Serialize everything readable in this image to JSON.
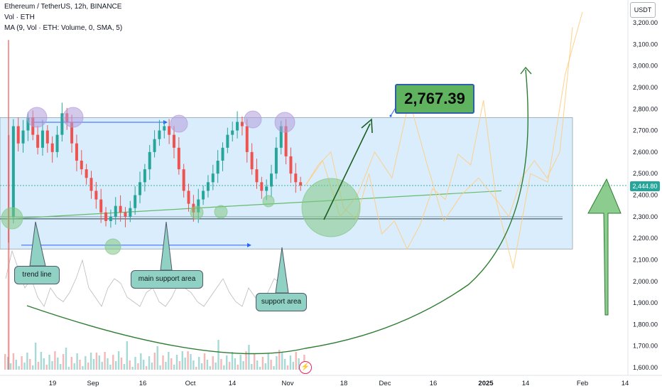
{
  "header": {
    "symbol_line": "Ethereum / TetherUS, 12h, BINANCE",
    "vol_line": "Vol · ETH",
    "ma_line": "MA (9, Vol · ETH: Volume, 0, SMA, 5)"
  },
  "price_axis": {
    "currency": "USDT",
    "labels": [
      "3,200.00",
      "3,100.00",
      "3,000.00",
      "2,900.00",
      "2,800.00",
      "2,700.00",
      "2,600.00",
      "2,500.00",
      "2,400.00",
      "2,300.00",
      "2,200.00",
      "2,100.00",
      "2,000.00",
      "1,900.00",
      "1,800.00",
      "1,700.00",
      "1,600.00"
    ],
    "current_price": "2,444.80"
  },
  "time_axis": {
    "labels": [
      "19",
      "Sep",
      "16",
      "Oct",
      "14",
      "Nov",
      "18",
      "Dec",
      "16",
      "2025",
      "14",
      "Feb",
      "14"
    ]
  },
  "annotations": {
    "target_price": "2,767.39",
    "trend_line": "trend line",
    "main_support": "main support area",
    "support_area": "support area"
  },
  "colors": {
    "up": "#26a69a",
    "down": "#ef5350",
    "zone": "#bbdefb",
    "arrow": "#2e7d32",
    "callout": "#8fd1c3"
  },
  "icons": [
    "lightning-icon"
  ],
  "chart_data": {
    "type": "candlestick",
    "title": "Ethereum / TetherUS, 12h, BINANCE",
    "ylim": [
      1550,
      3250
    ],
    "zone": [
      2150,
      2760
    ],
    "support_level": 2290,
    "close_series": [
      2300,
      2720,
      2640,
      2700,
      2760,
      2680,
      2620,
      2700,
      2640,
      2600,
      2680,
      2780,
      2740,
      2640,
      2560,
      2520,
      2480,
      2420,
      2380,
      2320,
      2280,
      2300,
      2350,
      2320,
      2300,
      2340,
      2400,
      2460,
      2520,
      2600,
      2660,
      2700,
      2720,
      2680,
      2620,
      2520,
      2420,
      2360,
      2320,
      2380,
      2420,
      2460,
      2500,
      2560,
      2620,
      2680,
      2700,
      2740,
      2720,
      2600,
      2520,
      2460,
      2420,
      2440,
      2500,
      2620,
      2720,
      2580,
      2500,
      2460,
      2444.8
    ],
    "projection_a": [
      2444.8,
      2540,
      2600,
      2340,
      2290,
      2500,
      2220,
      2280,
      2150,
      2260,
      2430,
      2380,
      2590,
      2540,
      2840,
      2380,
      2300,
      2480,
      2560,
      2480,
      2600,
      3180
    ],
    "projection_b": [
      2444.8,
      2560,
      2300,
      2400,
      2600,
      2480,
      2840,
      2550,
      2280,
      2400,
      2480,
      2380,
      2060,
      2500,
      2460,
      2960,
      3250
    ],
    "volume_ma": [
      0.6,
      0.9,
      0.7,
      0.5,
      0.6,
      0.4,
      0.3,
      0.5,
      0.4,
      0.35,
      0.45,
      0.6,
      0.8,
      0.5,
      0.4,
      0.3,
      0.5,
      0.6,
      0.55,
      0.4,
      0.35,
      0.3,
      0.45,
      0.5,
      0.35,
      0.3,
      0.4,
      0.55,
      0.5,
      0.45,
      0.35,
      0.3,
      0.4,
      0.5,
      0.6,
      0.45,
      0.35,
      0.3,
      0.5,
      0.4,
      0.35,
      0.45,
      0.6,
      0.55,
      0.4,
      0.3,
      0.25
    ]
  }
}
